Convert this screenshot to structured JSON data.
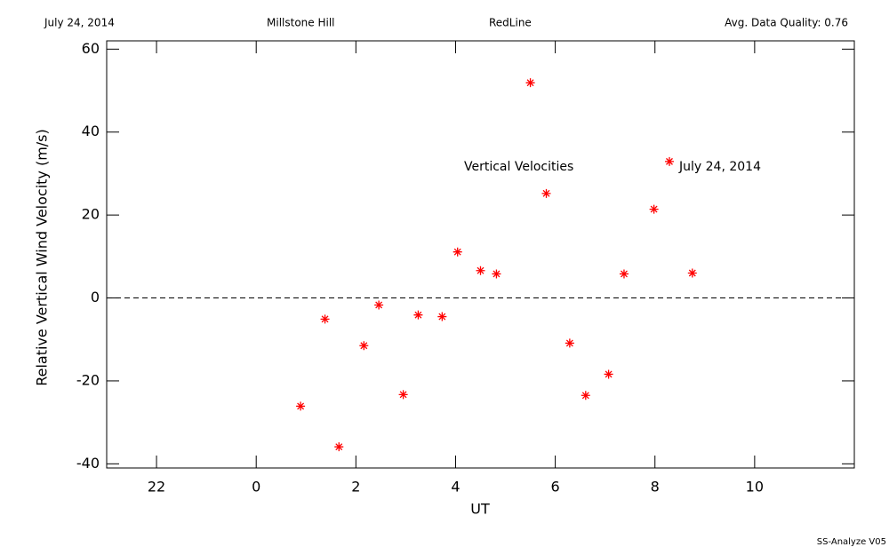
{
  "header": {
    "date": "July 24, 2014",
    "site": "Millstone Hill",
    "line": "RedLine",
    "quality": "Avg. Data Quality: 0.76"
  },
  "footer": "SS-Analyze V05",
  "chart_data": {
    "type": "scatter",
    "xlabel": "UT",
    "ylabel": "Relative Vertical Wind Velocity (m/s)",
    "annotations": [
      "Vertical Velocities",
      "July 24, 2014"
    ],
    "color": "#ff0000",
    "hline": 0,
    "x": [
      0.89,
      1.38,
      1.66,
      2.16,
      2.46,
      2.95,
      3.25,
      3.73,
      4.04,
      4.5,
      4.82,
      5.5,
      5.82,
      6.29,
      6.61,
      7.07,
      7.38,
      7.98,
      8.29,
      8.75
    ],
    "values": [
      -26.1,
      -5.1,
      -35.9,
      -11.5,
      -1.7,
      -23.3,
      -4.1,
      -4.5,
      11.1,
      6.6,
      5.8,
      51.9,
      25.2,
      -10.9,
      -23.5,
      -18.4,
      5.8,
      21.4,
      32.9,
      6.0
    ],
    "xlim": [
      -3,
      12
    ],
    "xticks": [
      {
        "value": -2,
        "label": "22"
      },
      0,
      2,
      4,
      6,
      8,
      10
    ],
    "ylim": [
      -41,
      62
    ],
    "yticks": [
      -40,
      -20,
      0,
      20,
      40,
      60
    ]
  }
}
